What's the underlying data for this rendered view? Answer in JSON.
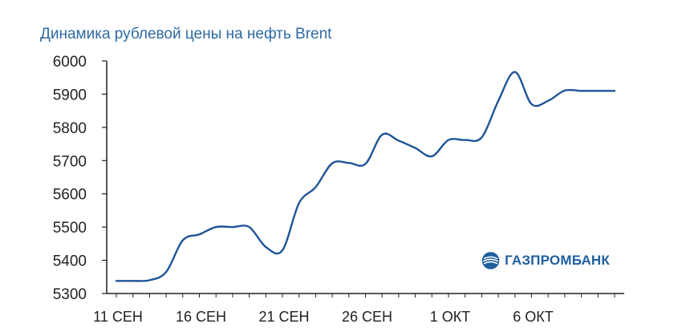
{
  "title": "Динамика рублевой цены на нефть Brent",
  "logo": {
    "text": "ГАЗПРОМБАНК"
  },
  "colors": {
    "line": "#1f5499",
    "title": "#2e6aa3",
    "axis": "#222222",
    "logo": "#1f5f9e"
  },
  "chart_data": {
    "type": "line",
    "title": "Динамика рублевой цены на нефть Brent",
    "xlabel": "",
    "ylabel": "",
    "ylim": [
      5300,
      6000
    ],
    "yticks": [
      5300,
      5400,
      5500,
      5600,
      5700,
      5800,
      5900,
      6000
    ],
    "xlim": [
      0,
      31
    ],
    "xticks": [
      {
        "x": 0,
        "label": "11 СЕН"
      },
      {
        "x": 5,
        "label": "16 СЕН"
      },
      {
        "x": 10,
        "label": "21 СЕН"
      },
      {
        "x": 15,
        "label": "26 СЕН"
      },
      {
        "x": 20,
        "label": "1 ОКТ"
      },
      {
        "x": 25,
        "label": "6 ОКТ"
      }
    ],
    "grid": false,
    "legend": "none",
    "series": [
      {
        "x": [
          0,
          1,
          2,
          3,
          4,
          5,
          6,
          7,
          8,
          9,
          10,
          11,
          12,
          13,
          14,
          15,
          16,
          17,
          18,
          19,
          20,
          21,
          22,
          23,
          24,
          25,
          26,
          27,
          28,
          29,
          30
        ],
        "values": [
          5338,
          5338,
          5340,
          5365,
          5460,
          5478,
          5500,
          5500,
          5500,
          5440,
          5430,
          5572,
          5620,
          5692,
          5693,
          5690,
          5778,
          5760,
          5738,
          5713,
          5762,
          5762,
          5770,
          5880,
          5967,
          5870,
          5880,
          5911,
          5910,
          5910,
          5910
        ]
      }
    ]
  }
}
